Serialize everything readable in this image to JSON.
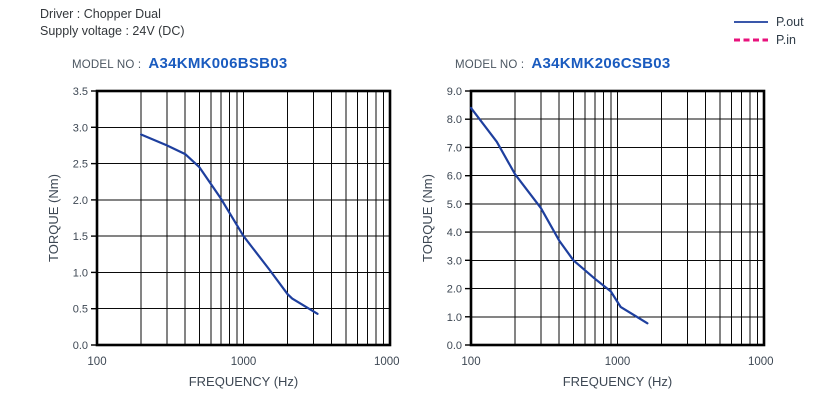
{
  "header": {
    "driver": "Driver : Chopper Dual",
    "supply": "Supply voltage : 24V (DC)"
  },
  "legend": {
    "items": [
      {
        "label": "P.out",
        "style": "solid",
        "color": "#1e3f9e"
      },
      {
        "label": "P.in",
        "style": "dashed",
        "color": "#e8127c"
      }
    ]
  },
  "charts": [
    {
      "model_label": "MODEL NO :",
      "model_no": "A34KMK006BSB03"
    },
    {
      "model_label": "MODEL NO :",
      "model_no": "A34KMK206CSB03"
    }
  ],
  "colors": {
    "curve_blue": "#1e3f9e",
    "model_blue": "#1a5bbf",
    "pin_magenta": "#e8127c",
    "axis_text": "#3e4854",
    "grid": "#0a0a0a"
  },
  "chart_data": [
    {
      "type": "line",
      "title": "A34KMK006BSB03",
      "xlabel": "FREQUENCY (Hz)",
      "ylabel": "TORQUE (Nm)",
      "xscale": "log",
      "xlim": [
        100,
        10000
      ],
      "ylim": [
        0,
        3.5
      ],
      "ytick_step": 0.5,
      "xticks": [
        100,
        1000,
        10000
      ],
      "grid": true,
      "legend_position": "top-right-of-page",
      "series": [
        {
          "name": "P.out",
          "color": "#1e3f9e",
          "style": "solid",
          "points": [
            [
              200,
              2.9
            ],
            [
              300,
              2.75
            ],
            [
              400,
              2.63
            ],
            [
              500,
              2.45
            ],
            [
              700,
              2.02
            ],
            [
              1000,
              1.5
            ],
            [
              1500,
              1.04
            ],
            [
              2000,
              0.7
            ],
            [
              2150,
              0.64
            ],
            [
              3200,
              0.43
            ]
          ]
        }
      ]
    },
    {
      "type": "line",
      "title": "A34KMK206CSB03",
      "xlabel": "FREQUENCY (Hz)",
      "ylabel": "TORQUE (Nm)",
      "xscale": "log",
      "xlim": [
        100,
        10000
      ],
      "ylim": [
        0,
        9.0
      ],
      "ytick_step": 1.0,
      "xticks": [
        100,
        1000,
        10000
      ],
      "grid": true,
      "legend_position": "top-right-of-page",
      "series": [
        {
          "name": "P.out",
          "color": "#1e3f9e",
          "style": "solid",
          "points": [
            [
              100,
              8.4
            ],
            [
              150,
              7.2
            ],
            [
              200,
              6.05
            ],
            [
              300,
              4.85
            ],
            [
              400,
              3.7
            ],
            [
              500,
              3.0
            ],
            [
              700,
              2.35
            ],
            [
              900,
              1.9
            ],
            [
              1050,
              1.35
            ],
            [
              1600,
              0.77
            ]
          ]
        }
      ]
    }
  ]
}
